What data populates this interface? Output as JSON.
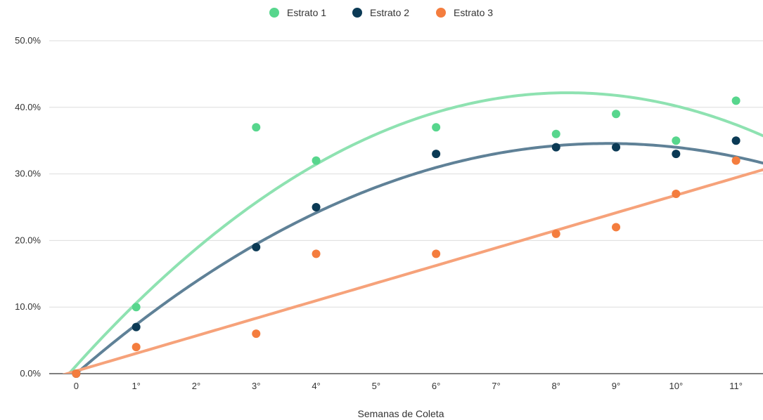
{
  "chart_data": {
    "type": "scatter",
    "title": "",
    "xlabel": "Semanas de Coleta",
    "ylabel": "",
    "x_ticks": [
      {
        "value": 0,
        "label": "0"
      },
      {
        "value": 1,
        "label": "1°"
      },
      {
        "value": 2,
        "label": "2°"
      },
      {
        "value": 3,
        "label": "3°"
      },
      {
        "value": 4,
        "label": "4°"
      },
      {
        "value": 5,
        "label": "5°"
      },
      {
        "value": 6,
        "label": "6°"
      },
      {
        "value": 7,
        "label": "7°"
      },
      {
        "value": 8,
        "label": "8°"
      },
      {
        "value": 9,
        "label": "9°"
      },
      {
        "value": 10,
        "label": "10°"
      },
      {
        "value": 11,
        "label": "11°"
      }
    ],
    "xlim": [
      -0.45,
      11.45
    ],
    "ylim": [
      0,
      50
    ],
    "y_ticks": [
      {
        "value": 0,
        "label": "0.0%"
      },
      {
        "value": 10,
        "label": "10.0%"
      },
      {
        "value": 20,
        "label": "20.0%"
      },
      {
        "value": 30,
        "label": "30.0%"
      },
      {
        "value": 40,
        "label": "40.0%"
      },
      {
        "value": 50,
        "label": "50.0%"
      }
    ],
    "grid": true,
    "legend_position": "top",
    "series": [
      {
        "name": "Estrato 1",
        "color": "#57d68d",
        "trend_color": "#8ee2b1",
        "trendline": "polynomial",
        "trend_coeffs": [
          1.2,
          10.0,
          -0.61
        ],
        "points": [
          [
            1,
            10
          ],
          [
            3,
            37
          ],
          [
            4,
            32
          ],
          [
            6,
            37
          ],
          [
            8,
            36
          ],
          [
            9,
            39
          ],
          [
            10,
            35
          ],
          [
            11,
            41
          ]
        ]
      },
      {
        "name": "Estrato 2",
        "color": "#0b3a55",
        "trend_color": "#5f8197",
        "trendline": "polynomial",
        "trend_coeffs": [
          0.0,
          7.8,
          -0.44
        ],
        "points": [
          [
            0,
            0
          ],
          [
            1,
            7
          ],
          [
            3,
            19
          ],
          [
            4,
            25
          ],
          [
            6,
            33
          ],
          [
            8,
            34
          ],
          [
            9,
            34
          ],
          [
            10,
            33
          ],
          [
            11,
            35
          ]
        ]
      },
      {
        "name": "Estrato 3",
        "color": "#f47d3e",
        "trend_color": "#f6a27a",
        "trendline": "linear",
        "trend_coeffs": [
          0.4,
          2.64,
          0
        ],
        "points": [
          [
            0,
            0
          ],
          [
            1,
            4
          ],
          [
            3,
            6
          ],
          [
            4,
            18
          ],
          [
            6,
            18
          ],
          [
            8,
            21
          ],
          [
            9,
            22
          ],
          [
            10,
            27
          ],
          [
            11,
            32
          ]
        ]
      }
    ]
  }
}
